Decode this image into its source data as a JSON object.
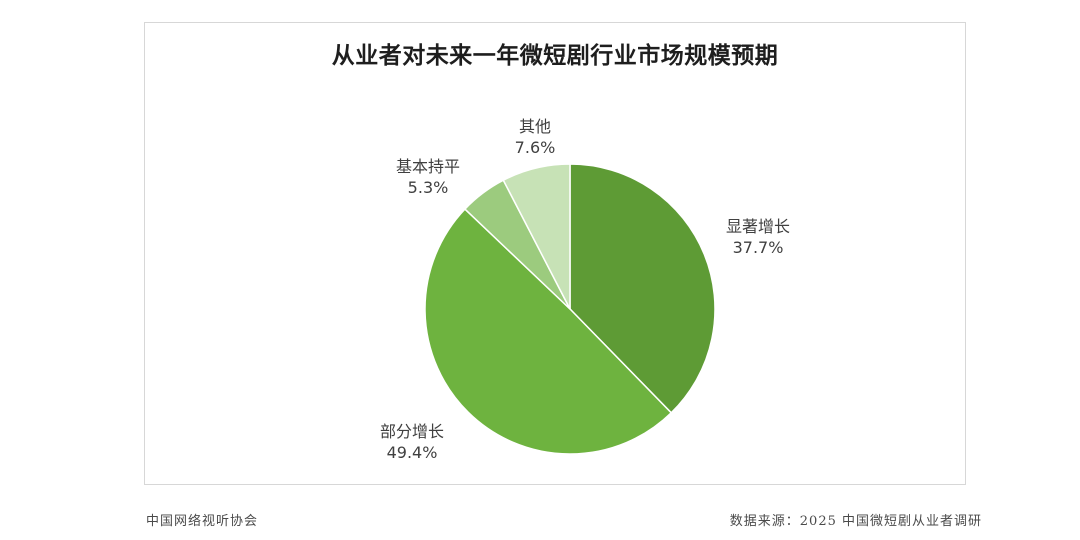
{
  "chart_data": {
    "type": "pie",
    "title": "从业者对未来一年微短剧行业市场规模预期",
    "slices": [
      {
        "label": "显著增长",
        "value": 37.7,
        "value_text": "37.7%",
        "color": "#5e9b35"
      },
      {
        "label": "部分增长",
        "value": 49.4,
        "value_text": "49.4%",
        "color": "#6eb33f"
      },
      {
        "label": "基本持平",
        "value": 5.3,
        "value_text": "5.3%",
        "color": "#9ccb7e"
      },
      {
        "label": "其他",
        "value": 7.6,
        "value_text": "7.6%",
        "color": "#c7e2b6"
      }
    ],
    "start_angle": "12 o'clock",
    "direction": "clockwise"
  },
  "footer": {
    "source_org": "中国网络视听协会",
    "data_source": "数据来源：2025 中国微短剧从业者调研"
  }
}
